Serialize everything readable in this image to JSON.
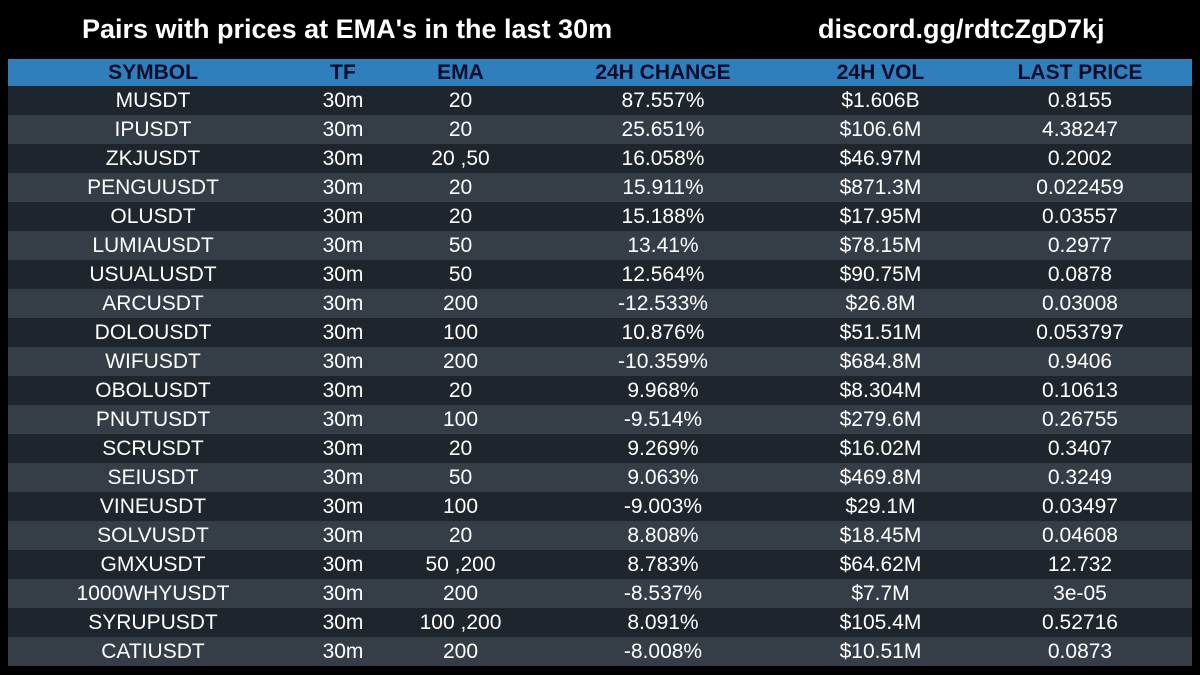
{
  "header": {
    "title": "Pairs with prices at EMA's in the last 30m",
    "discord": "discord.gg/rdtcZgD7kj"
  },
  "colors": {
    "background": "#000000",
    "header_row": "#2f7fbd",
    "row_dark": "#1e252c",
    "row_light": "#353d47"
  },
  "table": {
    "columns": [
      "SYMBOL",
      "TF",
      "EMA",
      "24H CHANGE",
      "24H VOL",
      "LAST PRICE"
    ],
    "rows": [
      [
        "MUSDT",
        "30m",
        "20",
        "87.557%",
        "$1.606B",
        "0.8155"
      ],
      [
        "IPUSDT",
        "30m",
        "20",
        "25.651%",
        "$106.6M",
        "4.38247"
      ],
      [
        "ZKJUSDT",
        "30m",
        "20 ,50",
        "16.058%",
        "$46.97M",
        "0.2002"
      ],
      [
        "PENGUUSDT",
        "30m",
        "20",
        "15.911%",
        "$871.3M",
        "0.022459"
      ],
      [
        "OLUSDT",
        "30m",
        "20",
        "15.188%",
        "$17.95M",
        "0.03557"
      ],
      [
        "LUMIAUSDT",
        "30m",
        "50",
        "13.41%",
        "$78.15M",
        "0.2977"
      ],
      [
        "USUALUSDT",
        "30m",
        "50",
        "12.564%",
        "$90.75M",
        "0.0878"
      ],
      [
        "ARCUSDT",
        "30m",
        "200",
        "-12.533%",
        "$26.8M",
        "0.03008"
      ],
      [
        "DOLOUSDT",
        "30m",
        "100",
        "10.876%",
        "$51.51M",
        "0.053797"
      ],
      [
        "WIFUSDT",
        "30m",
        "200",
        "-10.359%",
        "$684.8M",
        "0.9406"
      ],
      [
        "OBOLUSDT",
        "30m",
        "20",
        "9.968%",
        "$8.304M",
        "0.10613"
      ],
      [
        "PNUTUSDT",
        "30m",
        "100",
        "-9.514%",
        "$279.6M",
        "0.26755"
      ],
      [
        "SCRUSDT",
        "30m",
        "20",
        "9.269%",
        "$16.02M",
        "0.3407"
      ],
      [
        "SEIUSDT",
        "30m",
        "50",
        "9.063%",
        "$469.8M",
        "0.3249"
      ],
      [
        "VINEUSDT",
        "30m",
        "100",
        "-9.003%",
        "$29.1M",
        "0.03497"
      ],
      [
        "SOLVUSDT",
        "30m",
        "20",
        "8.808%",
        "$18.45M",
        "0.04608"
      ],
      [
        "GMXUSDT",
        "30m",
        "50 ,200",
        "8.783%",
        "$64.62M",
        "12.732"
      ],
      [
        "1000WHYUSDT",
        "30m",
        "200",
        "-8.537%",
        "$7.7M",
        "3e-05"
      ],
      [
        "SYRUPUSDT",
        "30m",
        "100 ,200",
        "8.091%",
        "$105.4M",
        "0.52716"
      ],
      [
        "CATIUSDT",
        "30m",
        "200",
        "-8.008%",
        "$10.51M",
        "0.0873"
      ]
    ]
  }
}
